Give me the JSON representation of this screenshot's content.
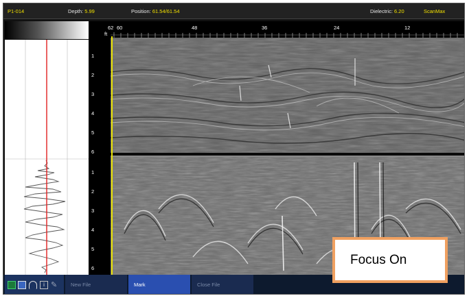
{
  "status": {
    "file_id": "P1-014",
    "depth_label": "Depth:",
    "depth_value": "5.99",
    "position_label": "Position:",
    "position_value": "61.54/61.54",
    "dielectric_label": "Dielectric:",
    "dielectric_value": "6.20",
    "mode": "ScanMax"
  },
  "ruler": {
    "unit": "ft",
    "ticks": [
      "62",
      "60",
      "48",
      "36",
      "24",
      "12"
    ]
  },
  "depth_axis": {
    "upper": [
      "1",
      "2",
      "3",
      "4",
      "5",
      "6"
    ],
    "lower": [
      "1",
      "2",
      "3",
      "4",
      "5",
      "6"
    ]
  },
  "toolbar": {
    "icons": [
      "battery-icon",
      "screen-icon",
      "wifi-icon",
      "info-icon",
      "tool-icon"
    ],
    "new_file": "New File",
    "mark": "Mark",
    "close_file": "Close File"
  },
  "callout": {
    "text": "Focus On"
  },
  "colors": {
    "status_value": "#f2e000",
    "cursor": "#e8e000",
    "trace_marker": "#e02020",
    "mark_button": "#2a4fb0",
    "callout_border": "#f0a060"
  }
}
